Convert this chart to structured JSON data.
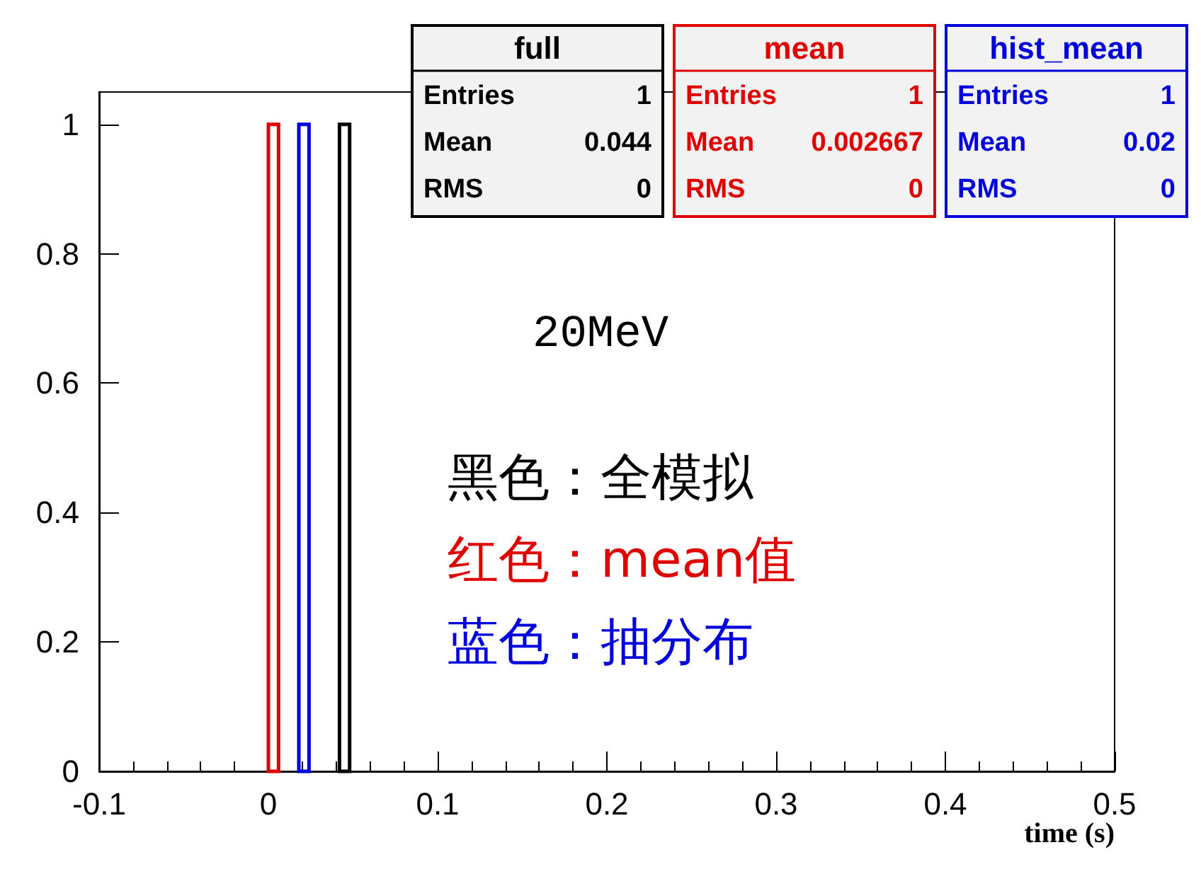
{
  "chart_data": {
    "type": "histogram",
    "xlabel": "time (s)",
    "bins": [
      0,
      0.006,
      0.018,
      0.024,
      0.042,
      0.048
    ],
    "series": [
      {
        "name": "full",
        "color": "#000000",
        "values": [
          0,
          0,
          0,
          0,
          1
        ]
      },
      {
        "name": "mean",
        "color": "#e00000",
        "values": [
          1,
          0,
          0,
          0,
          0
        ]
      },
      {
        "name": "hist_mean",
        "color": "#0000dd",
        "values": [
          0,
          0,
          1,
          0,
          0
        ]
      }
    ],
    "xlim": [
      -0.1,
      0.5
    ],
    "xticks": [
      -0.1,
      0,
      0.1,
      0.2,
      0.3,
      0.4,
      0.5
    ],
    "ylim": [
      0,
      1.05
    ],
    "yticks": [
      0,
      0.2,
      0.4,
      0.6,
      0.8,
      1
    ],
    "grid": false,
    "annotations": [
      "20MeV",
      "黑色：全模拟",
      "红色：mean值",
      "蓝色：抽分布",
      "Entries 1",
      "Mean 0.044",
      "RMS 0",
      "Entries 1",
      "Mean 0.002667",
      "RMS 0",
      "Entries 1",
      "Mean 0.02",
      "RMS 0"
    ]
  }
}
